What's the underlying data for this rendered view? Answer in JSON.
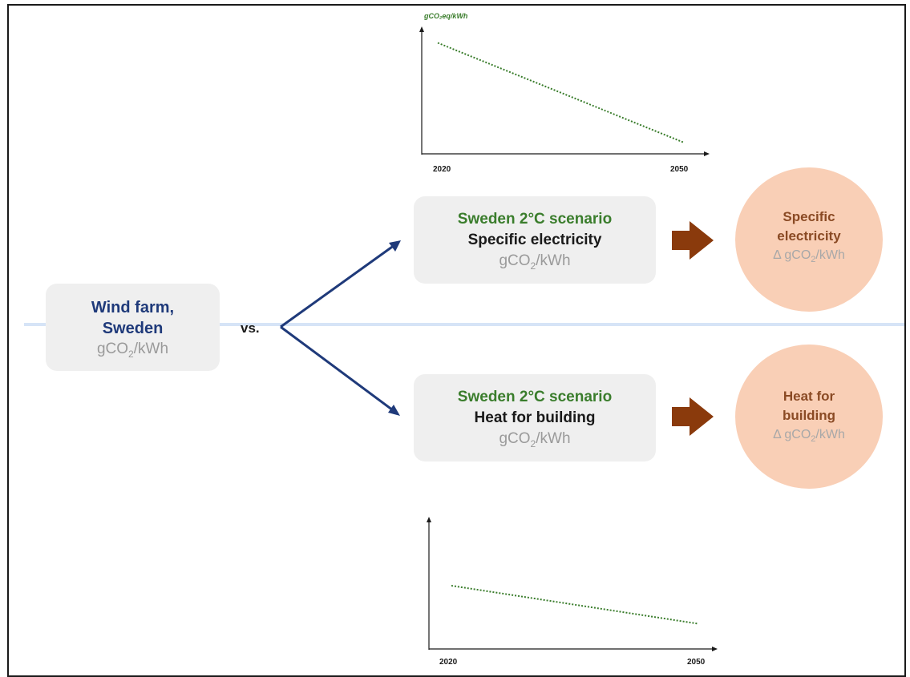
{
  "source": {
    "title_line1": "Wind farm,",
    "title_line2": "Sweden",
    "unit_prefix": "gCO",
    "unit_sub": "2",
    "unit_suffix": "/kWh"
  },
  "vs_label": "vs.",
  "scenarios": [
    {
      "scenario": "Sweden 2°C scenario",
      "name": "Specific electricity",
      "unit_prefix": "gCO",
      "unit_sub": "2",
      "unit_suffix": "/kWh",
      "result_line1": "Specific",
      "result_line2": "electricity",
      "result_unit": "Δ gCO",
      "result_unit_sub": "2",
      "result_unit_suffix": "/kWh"
    },
    {
      "scenario": "Sweden 2°C scenario",
      "name": "Heat for building",
      "unit_prefix": "gCO",
      "unit_sub": "2",
      "unit_suffix": "/kWh",
      "result_line1": "Heat for",
      "result_line2": "building",
      "result_unit": "Δ gCO",
      "result_unit_sub": "2",
      "result_unit_suffix": "/kWh"
    }
  ],
  "chart_data": [
    {
      "type": "line",
      "ylabel": "gCO₂eq/kWh",
      "x": [
        2020,
        2050
      ],
      "tick_labels": [
        "2020",
        "2050"
      ],
      "series": [
        {
          "values": [
            0.9,
            0.1
          ]
        }
      ],
      "ylim": [
        0,
        1
      ],
      "grid": false,
      "style": "dotted",
      "color": "#3a7d2c"
    },
    {
      "type": "line",
      "ylabel": "",
      "x": [
        2020,
        2050
      ],
      "tick_labels": [
        "2020",
        "2050"
      ],
      "series": [
        {
          "values": [
            0.5,
            0.2
          ]
        }
      ],
      "ylim": [
        0,
        1
      ],
      "grid": false,
      "style": "dotted",
      "color": "#3a7d2c"
    }
  ],
  "colors": {
    "axis_line": "#d6e4f7",
    "arrow_blue": "#1f3a7a",
    "arrow_brown": "#8a3a0c",
    "circle_fill": "#f9cfb6",
    "box_fill": "#efefef"
  }
}
